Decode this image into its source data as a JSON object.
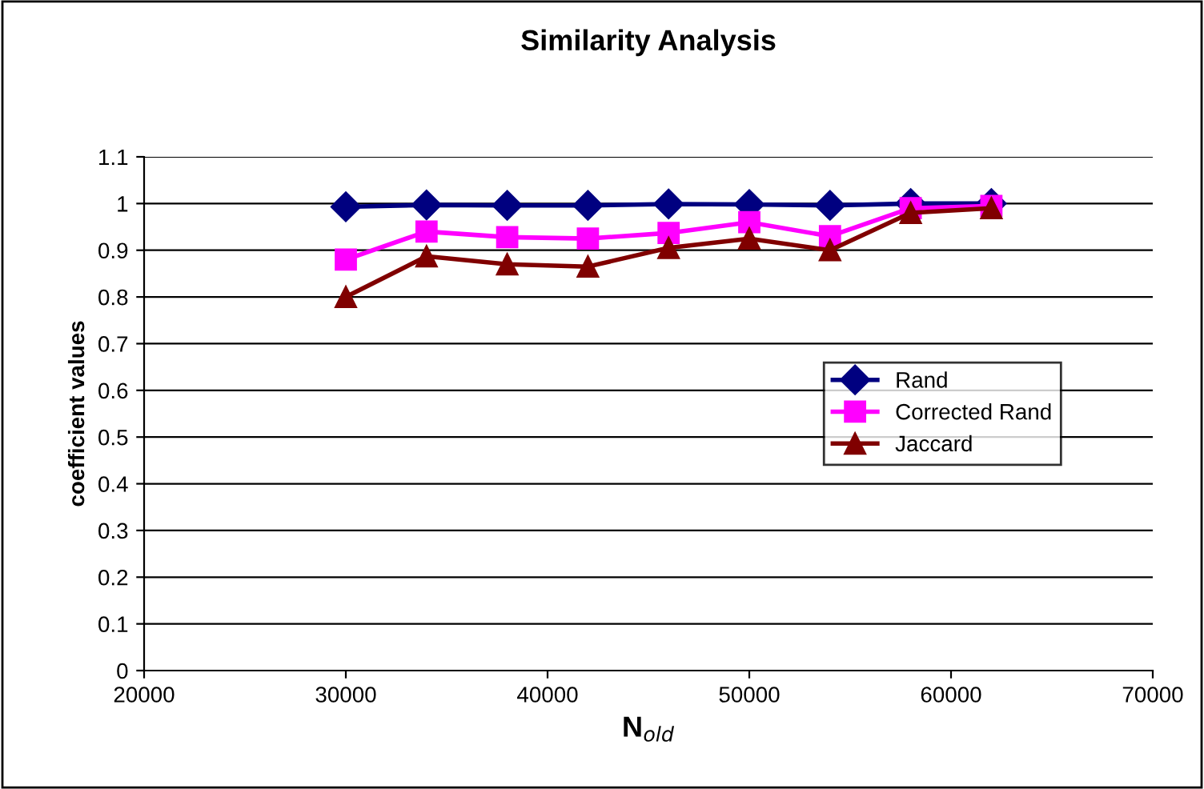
{
  "chart_data": {
    "type": "line",
    "title": "Similarity Analysis",
    "xlabel": "N$_{old}$",
    "ylabel": "coefficient values",
    "x": [
      30000,
      34000,
      38000,
      42000,
      46000,
      50000,
      54000,
      58000,
      62000
    ],
    "series": [
      {
        "name": "Rand",
        "color": "#000080",
        "marker": "diamond",
        "values": [
          0.993,
          0.997,
          0.996,
          0.996,
          0.999,
          0.998,
          0.996,
          1.0,
          1.0
        ]
      },
      {
        "name": "Corrected Rand",
        "color": "#ff00ff",
        "marker": "square",
        "values": [
          0.88,
          0.94,
          0.928,
          0.925,
          0.937,
          0.96,
          0.93,
          0.99,
          0.995
        ]
      },
      {
        "name": "Jaccard",
        "color": "#800000",
        "marker": "triangle",
        "values": [
          0.8,
          0.887,
          0.87,
          0.865,
          0.905,
          0.925,
          0.9,
          0.98,
          0.99
        ]
      }
    ],
    "xlim": [
      20000,
      70000
    ],
    "xticks": [
      20000,
      30000,
      40000,
      50000,
      60000,
      70000
    ],
    "ylim": [
      0,
      1.1
    ],
    "yticks": [
      0,
      0.1,
      0.2,
      0.3,
      0.4,
      0.5,
      0.6,
      0.7,
      0.8,
      0.9,
      1,
      1.1
    ],
    "grid": "y",
    "legend": "right",
    "line_style": "solid"
  }
}
